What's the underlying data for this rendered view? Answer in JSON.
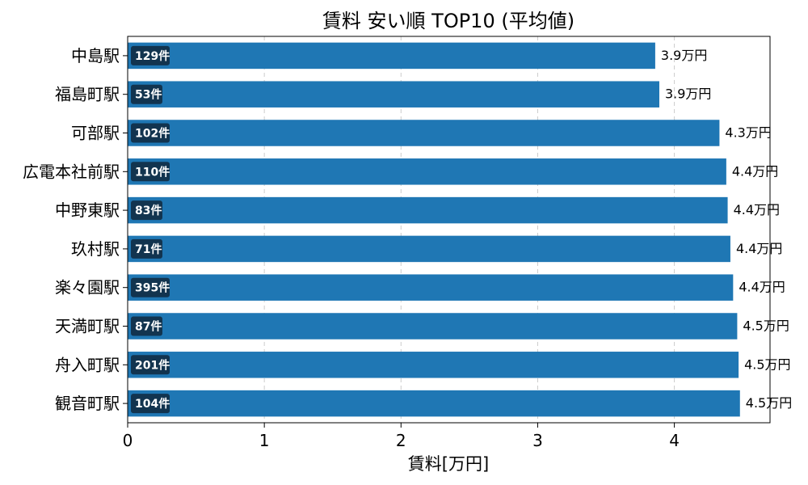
{
  "chart_data": {
    "type": "bar",
    "orientation": "horizontal",
    "title": "賃料 安い順 TOP10 (平均値)",
    "xlabel": "賃料[万円]",
    "ylabel": "",
    "xlim": [
      0,
      4.7
    ],
    "xticks": [
      "0",
      "1",
      "2",
      "3",
      "4"
    ],
    "grid": "x-dashed",
    "categories": [
      "中島駅",
      "福島町駅",
      "可部駅",
      "広電本社前駅",
      "中野東駅",
      "玖村駅",
      "楽々園駅",
      "天満町駅",
      "舟入町駅",
      "観音町駅"
    ],
    "values": [
      3.86,
      3.89,
      4.33,
      4.38,
      4.39,
      4.41,
      4.43,
      4.46,
      4.47,
      4.48
    ],
    "value_labels": [
      "3.9万円",
      "3.9万円",
      "4.3万円",
      "4.4万円",
      "4.4万円",
      "4.4万円",
      "4.4万円",
      "4.5万円",
      "4.5万円",
      "4.5万円"
    ],
    "counts": [
      "129件",
      "53件",
      "102件",
      "110件",
      "83件",
      "71件",
      "395件",
      "87件",
      "201件",
      "104件"
    ],
    "colors": {
      "bar": "#1f77b4",
      "count_badge": "#12344f",
      "grid": "#cccccc"
    }
  }
}
